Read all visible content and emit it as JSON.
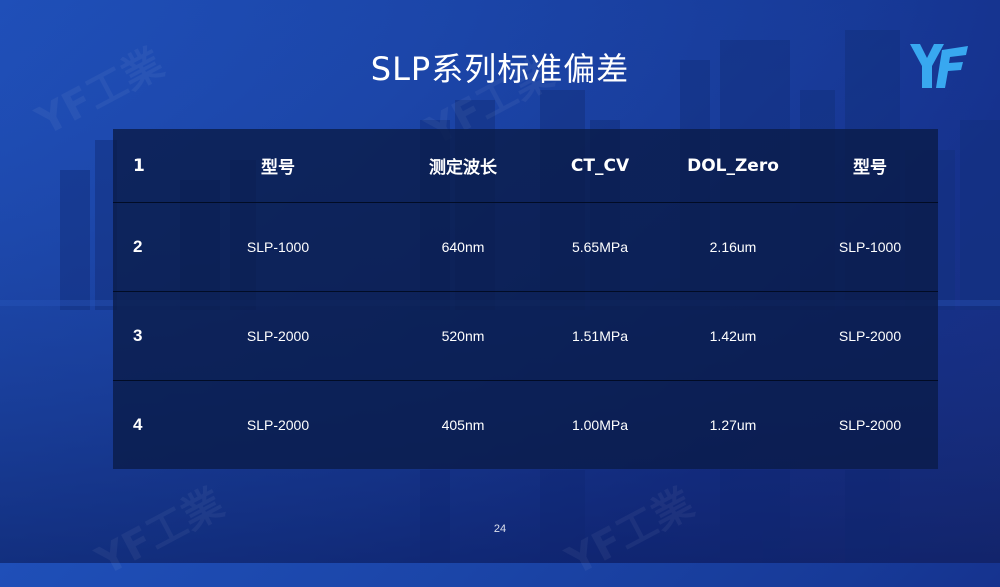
{
  "slide": {
    "title": "SLP系列标准偏差",
    "page_number": "24",
    "logo_text": "YF",
    "watermark_text": "YF工業"
  },
  "table": {
    "header": [
      "1",
      "型号",
      "测定波长",
      "CT_CV",
      "DOL_Zero",
      "型号"
    ],
    "rows": [
      [
        "2",
        "SLP-1000",
        "640nm",
        "5.65MPa",
        "2.16um",
        "SLP-1000"
      ],
      [
        "3",
        "SLP-2000",
        "520nm",
        "1.51MPa",
        "1.42um",
        "SLP-2000"
      ],
      [
        "4",
        "SLP-2000",
        "405nm",
        "1.00MPa",
        "1.27um",
        "SLP-2000"
      ]
    ]
  },
  "colors": {
    "background_start": "#1f4fb8",
    "background_end": "#1a2a78",
    "table_background": "#0a1c48",
    "logo_color": "#38a8f0",
    "text": "#ffffff"
  }
}
